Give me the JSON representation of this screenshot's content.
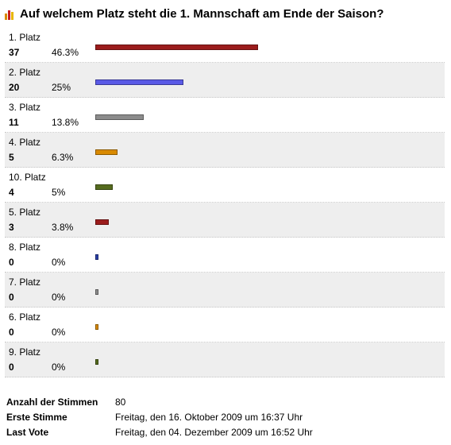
{
  "poll": {
    "title": "Auf welchem Platz steht die 1. Mannschaft am Ende der Saison?",
    "icon": "poll-bars-icon",
    "options": [
      {
        "label": "1. Platz",
        "votes": "37",
        "percent": "46.3%",
        "fraction": 0.463,
        "color": "#9b1c1c"
      },
      {
        "label": "2. Platz",
        "votes": "20",
        "percent": "25%",
        "fraction": 0.25,
        "color": "#5a5ae6"
      },
      {
        "label": "3. Platz",
        "votes": "11",
        "percent": "13.8%",
        "fraction": 0.138,
        "color": "#8c8c8c"
      },
      {
        "label": "4. Platz",
        "votes": "5",
        "percent": "6.3%",
        "fraction": 0.063,
        "color": "#d98a00"
      },
      {
        "label": "10. Platz",
        "votes": "4",
        "percent": "5%",
        "fraction": 0.05,
        "color": "#556b1e"
      },
      {
        "label": "5. Platz",
        "votes": "3",
        "percent": "3.8%",
        "fraction": 0.038,
        "color": "#9b1c1c"
      },
      {
        "label": "8. Platz",
        "votes": "0",
        "percent": "0%",
        "fraction": 0,
        "color": "#2a3fa8"
      },
      {
        "label": "7. Platz",
        "votes": "0",
        "percent": "0%",
        "fraction": 0,
        "color": "#8c8c8c"
      },
      {
        "label": "6. Platz",
        "votes": "0",
        "percent": "0%",
        "fraction": 0,
        "color": "#d98a00"
      },
      {
        "label": "9. Platz",
        "votes": "0",
        "percent": "0%",
        "fraction": 0,
        "color": "#556b1e"
      }
    ]
  },
  "summary": {
    "total_label": "Anzahl der Stimmen",
    "total_value": "80",
    "first_label": "Erste Stimme",
    "first_value": "Freitag, den 16. Oktober 2009 um 16:37 Uhr",
    "last_label": "Last Vote",
    "last_value": "Freitag, den 04. Dezember 2009 um 16:52 Uhr"
  }
}
